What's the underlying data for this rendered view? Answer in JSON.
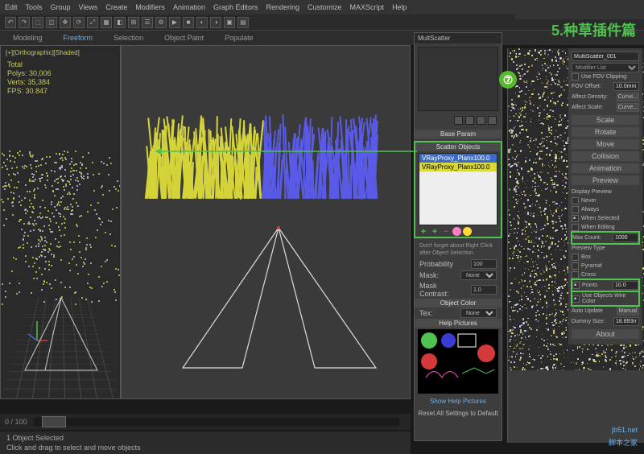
{
  "menus": [
    "Edit",
    "Tools",
    "Group",
    "Views",
    "Create",
    "Modifiers",
    "Animation",
    "Graph Editors",
    "Rendering",
    "Customize",
    "MAXScript",
    "Help"
  ],
  "ribbon": [
    "Modeling",
    "Freeform",
    "Selection",
    "Object Paint",
    "Populate"
  ],
  "ribbon_active": 1,
  "viewport": {
    "left_label": "[+][Orthographic][Shaded]",
    "stats": [
      "Total",
      "Polys: 30,006",
      "Verts: 35,384",
      "",
      "FPS: 30.847"
    ],
    "grass_yellow": "#d4d43a",
    "grass_blue": "#5a5ae8",
    "bg_left": "#2a2a2a",
    "bg_right": "#3f3f3f"
  },
  "timeline": {
    "current": "0 / 100"
  },
  "status": {
    "line1": "1 Object Selected",
    "line2": "Click and drag to select and move objects"
  },
  "ms": {
    "title": "MultScatter",
    "base": "Base Param",
    "scatter_header": "Scatter Objects",
    "items": [
      "VRayProxy_Planx100.0",
      "VRayProxy_Planx100.0"
    ],
    "hint": "Don't forget about Right Click after Object Selection.",
    "probability": "Probability",
    "probability_val": "100",
    "mask": "Mask:",
    "mask_val": "None",
    "mask_contrast": "Mask Contrast:",
    "mask_contrast_val": "1.0",
    "object_color": "Object Color",
    "tex": "Tex:",
    "tex_val": "None",
    "help": "Help Pictures",
    "showhelp": "Show Help Pictures",
    "reset": "Reset All Settings to Default",
    "btn_colors": [
      "#4fc24f",
      "#d43a3a",
      "#ff7fc2",
      "#ffd83a",
      "#3a3ad4"
    ]
  },
  "rp": {
    "title": "MultiScatter_001",
    "modlist": "Modifier List",
    "fov": "Use FOV Clipping:",
    "fov_offset": "FOV Offset:",
    "fov_val": "10.0mm",
    "density": "Affect Density:",
    "scale": "Affect Scale:",
    "curve": "Curve...",
    "rollouts": [
      "Scale",
      "Rotate",
      "Move",
      "Collision",
      "Animation",
      "Preview"
    ],
    "display": "Display Preview",
    "display_opts": [
      "Never",
      "Always",
      "When Selected",
      "When Editing"
    ],
    "display_sel": 2,
    "maxcount": "Max Count:",
    "maxcount_val": "1000",
    "preview_type": "Preview Type",
    "pt_opts": [
      "Box",
      "Pyramid",
      "Cross"
    ],
    "points": "Points",
    "points_val": "10.0",
    "wirecolor": "Use Objects Wire Color",
    "autoupdate": "Auto Update",
    "manual": "Manual",
    "dummy": "Dummy Size:",
    "dummy_val": "18.893mm",
    "about": "About"
  },
  "annotation": {
    "step": "⑦",
    "title": "5.种草插件篇"
  },
  "watermark": {
    "l1": "jb51.net",
    "l2": "脚本之家"
  },
  "colors": {
    "hl": "#4fc24f"
  }
}
